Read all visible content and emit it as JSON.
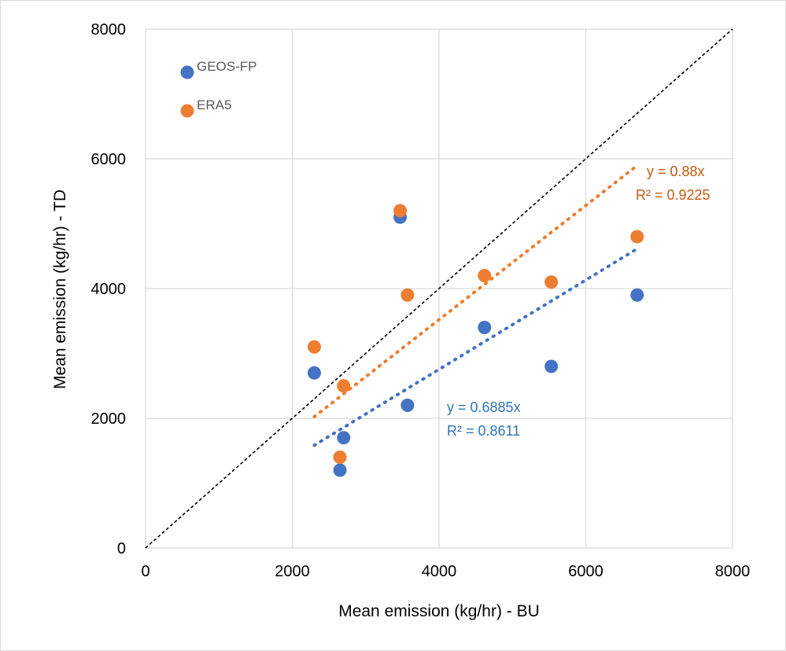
{
  "chart_data": {
    "type": "scatter",
    "xlabel": "Mean emission (kg/hr) - BU",
    "ylabel": "Mean emission (kg/hr) - TD",
    "xlim": [
      0,
      8000
    ],
    "ylim": [
      0,
      8000
    ],
    "x_ticks": [
      "0",
      "2000",
      "4000",
      "6000",
      "8000"
    ],
    "y_ticks": [
      "0",
      "2000",
      "4000",
      "6000",
      "8000"
    ],
    "grid": true,
    "legend_position": "top-left",
    "series": [
      {
        "name": "GEOS-FP",
        "color": "#4472c4",
        "x": [
          2300,
          2650,
          2700,
          3470,
          3570,
          4620,
          5530,
          6700
        ],
        "y": [
          2700,
          1200,
          1700,
          5100,
          2200,
          3400,
          2800,
          3900
        ],
        "trendline": {
          "slope": 0.6885,
          "x_range": [
            2300,
            6700
          ],
          "equation": "y = 0.6885x",
          "r2": "R² = 0.8611",
          "color": "#2e75b6"
        }
      },
      {
        "name": "ERA5",
        "color": "#ed7d31",
        "x": [
          2300,
          2650,
          2700,
          3470,
          3570,
          4620,
          5530,
          6700
        ],
        "y": [
          3100,
          1400,
          2500,
          5200,
          3900,
          4200,
          4100,
          4800
        ],
        "trendline": {
          "slope": 0.88,
          "x_range": [
            2300,
            6700
          ],
          "equation": "y = 0.88x",
          "r2": "R² = 0.9225",
          "color": "#c55a11"
        }
      }
    ],
    "reference_line": {
      "slope": 1,
      "style": "dashed",
      "color": "#000000"
    }
  }
}
